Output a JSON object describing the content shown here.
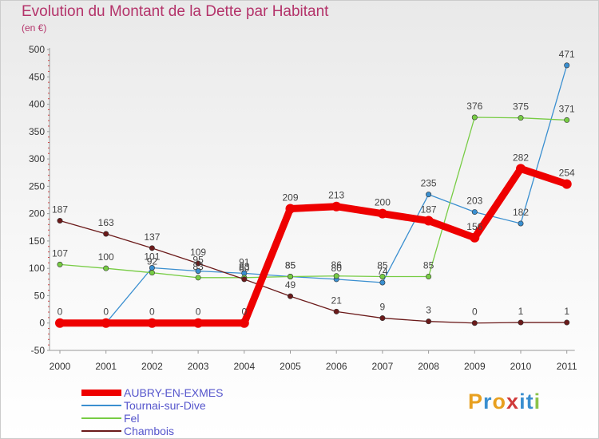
{
  "header": {
    "title": "Evolution du Montant de la Dette par Habitant",
    "unit": "(en €)"
  },
  "logo": {
    "text": "Proxiti",
    "colors": [
      "#e8a020",
      "#3a8fd0",
      "#e8a020",
      "#d03a3a",
      "#3a8fd0",
      "#3a8fd0",
      "#8bc34a"
    ]
  },
  "chart_data": {
    "type": "line",
    "x": [
      "2000",
      "2001",
      "2002",
      "2003",
      "2004",
      "2005",
      "2006",
      "2007",
      "2008",
      "2009",
      "2010",
      "2011"
    ],
    "ylim": [
      -50,
      500
    ],
    "yticks": [
      -50,
      0,
      50,
      100,
      150,
      200,
      250,
      300,
      350,
      400,
      450,
      500
    ],
    "grid": false,
    "legend_position": "bottom-left",
    "series": [
      {
        "name": "AUBRY-EN-EXMES",
        "color": "#ee0000",
        "values": [
          0,
          0,
          0,
          0,
          0,
          209,
          213,
          200,
          187,
          156,
          282,
          254
        ],
        "labels": [
          null,
          null,
          "0",
          "0",
          "0",
          "209",
          "213",
          "200",
          "187",
          "156",
          "282",
          "254"
        ]
      },
      {
        "name": "Tournai-sur-Dive",
        "color": "#3a8fd0",
        "values": [
          0,
          0,
          101,
          95,
          91,
          85,
          80,
          74,
          235,
          203,
          182,
          471
        ],
        "labels": [
          "0",
          "0",
          "101",
          "95",
          "91",
          "85",
          "80",
          "74",
          "235",
          "203",
          "182",
          "471"
        ]
      },
      {
        "name": "Fel",
        "color": "#77cc44",
        "values": [
          107,
          100,
          92,
          83,
          83,
          85,
          86,
          85,
          85,
          376,
          375,
          371
        ],
        "labels": [
          "107",
          "100",
          "92",
          "83",
          "83",
          "85",
          "86",
          "85",
          "85",
          "376",
          "375",
          "371"
        ]
      },
      {
        "name": "Chambois",
        "color": "#6b1a1a",
        "values": [
          187,
          163,
          137,
          109,
          80,
          49,
          21,
          9,
          3,
          0,
          1,
          1
        ],
        "labels": [
          "187",
          "163",
          "137",
          "109",
          "80",
          "49",
          "21",
          "9",
          "3",
          "0",
          "1",
          "1"
        ]
      }
    ]
  }
}
